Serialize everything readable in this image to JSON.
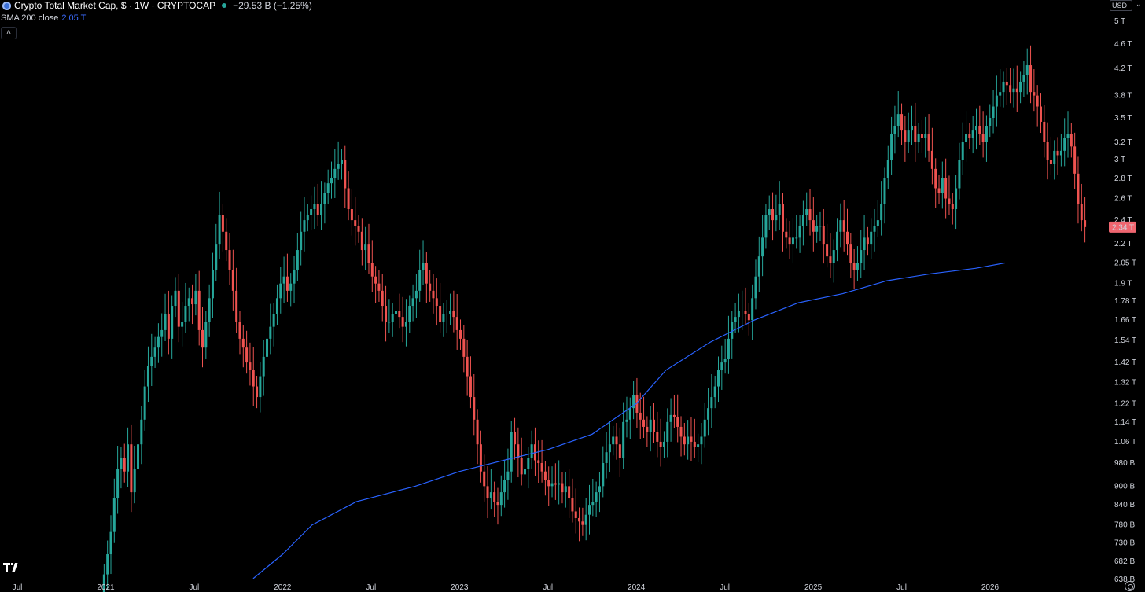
{
  "header": {
    "title": "Crypto Total Market Cap, $ · 1W · CRYPTOCAP",
    "change": "−29.53 B (−1.25%)",
    "indicator_label": "SMA 200 close",
    "indicator_value": "2.05 T",
    "collapse_icon": "chevron-up-icon",
    "currency": "USD"
  },
  "colors": {
    "up": "#26a69a",
    "down": "#ef5350",
    "sma": "#2962ff",
    "price_tag": "#f06670",
    "background": "#000000"
  },
  "chart_data": {
    "type": "line",
    "subtype": "candlestick_with_moving_average",
    "title": "Crypto Total Market Cap, $ · 1W · CRYPTOCAP",
    "xlabel": "",
    "ylabel": "",
    "y_scale": "log",
    "ylim": [
      "630B",
      "5.2T"
    ],
    "y_ticks": [
      "5 T",
      "4.6 T",
      "4.2 T",
      "3.8 T",
      "3.5 T",
      "3.2 T",
      "3 T",
      "2.8 T",
      "2.6 T",
      "2.4 T",
      "2.2 T",
      "2.05 T",
      "1.9 T",
      "1.78 T",
      "1.66 T",
      "1.54 T",
      "1.42 T",
      "1.32 T",
      "1.22 T",
      "1.14 T",
      "1.06 T",
      "980 B",
      "900 B",
      "840 B",
      "780 B",
      "730 B",
      "682 B",
      "638 B"
    ],
    "y_tick_values": [
      5000,
      4600,
      4200,
      3800,
      3500,
      3200,
      3000,
      2800,
      2600,
      2400,
      2200,
      2050,
      1900,
      1780,
      1660,
      1540,
      1420,
      1320,
      1220,
      1140,
      1060,
      980,
      900,
      840,
      780,
      730,
      682,
      638
    ],
    "x_ticks": [
      "Jul",
      "2021",
      "Jul",
      "2022",
      "Jul",
      "2023",
      "Jul",
      "2024",
      "Jul",
      "2025",
      "Jul",
      "2026"
    ],
    "x_tick_values": [
      "2020-07",
      "2021-01",
      "2021-07",
      "2022-01",
      "2022-07",
      "2023-01",
      "2023-07",
      "2024-01",
      "2024-07",
      "2025-01",
      "2025-07",
      "2026-01"
    ],
    "current_price_label": "2.34 T",
    "grid": false,
    "series": [
      {
        "name": "Crypto Total Market Cap",
        "type": "candlestick",
        "x_start": "2020-12-28",
        "x_step": "1 week",
        "closes": [
          650,
          700,
          760,
          860,
          960,
          1000,
          950,
          1050,
          880,
          960,
          1050,
          1150,
          1300,
          1400,
          1450,
          1500,
          1560,
          1600,
          1700,
          1550,
          1750,
          1850,
          1620,
          1650,
          1750,
          1800,
          1760,
          1850,
          1600,
          1500,
          1650,
          1800,
          2000,
          2200,
          2450,
          2300,
          2150,
          2000,
          1850,
          1650,
          1550,
          1500,
          1420,
          1380,
          1300,
          1250,
          1350,
          1450,
          1550,
          1620,
          1700,
          1800,
          1900,
          1950,
          1850,
          1900,
          2000,
          2150,
          2300,
          2400,
          2450,
          2500,
          2550,
          2450,
          2550,
          2650,
          2750,
          2800,
          2900,
          2950,
          3000,
          2700,
          2500,
          2400,
          2350,
          2300,
          2150,
          2200,
          2050,
          1950,
          1900,
          1850,
          1750,
          1650,
          1650,
          1700,
          1720,
          1680,
          1620,
          1650,
          1750,
          1800,
          1850,
          2000,
          2050,
          1900,
          1850,
          1800,
          1750,
          1650,
          1700,
          1700,
          1720,
          1680,
          1600,
          1550,
          1450,
          1350,
          1250,
          1150,
          1050,
          950,
          900,
          860,
          880,
          850,
          840,
          880,
          920,
          950,
          1100,
          1050,
          1000,
          940,
          960,
          1000,
          1050,
          990,
          980,
          950,
          920,
          900,
          910,
          905,
          910,
          880,
          900,
          860,
          820,
          800,
          790,
          780,
          810,
          840,
          850,
          880,
          900,
          980,
          1020,
          1050,
          1080,
          1050,
          1000,
          1140,
          1150,
          1200,
          1260,
          1180,
          1150,
          1120,
          1100,
          1150,
          1100,
          1060,
          1040,
          1060,
          1140,
          1170,
          1160,
          1120,
          1080,
          1050,
          1080,
          1060,
          1040,
          1050,
          1080,
          1150,
          1200,
          1250,
          1300,
          1380,
          1420,
          1440,
          1550,
          1650,
          1680,
          1720,
          1720,
          1700,
          1660,
          1800,
          1950,
          2100,
          2250,
          2450,
          2500,
          2400,
          2450,
          2550,
          2300,
          2250,
          2200,
          2250,
          2250,
          2350,
          2450,
          2500,
          2400,
          2300,
          2350,
          2350,
          2200,
          2100,
          2050,
          2150,
          2300,
          2400,
          2300,
          2200,
          2050,
          2000,
          2050,
          2150,
          2250,
          2200,
          2300,
          2350,
          2400,
          2550,
          2800,
          3000,
          3300,
          3400,
          3550,
          3350,
          3200,
          3350,
          3400,
          3200,
          3300,
          3250,
          3300,
          3100,
          2900,
          2700,
          2650,
          2800,
          2600,
          2550,
          2500,
          2700,
          3000,
          3200,
          3300,
          3250,
          3350,
          3400,
          3300,
          3200,
          3400,
          3500,
          3650,
          3800,
          3850,
          4000,
          3950,
          3850,
          3900,
          3850,
          4000,
          4100,
          4250,
          3850,
          3800,
          3650,
          3450,
          3200,
          3000,
          2950,
          3100,
          3050,
          3100,
          3250,
          3300,
          3150,
          2850,
          2550,
          2400,
          2340
        ],
        "note": "weekly OHLC estimated from the rendered candles"
      },
      {
        "name": "SMA 200 close",
        "type": "line",
        "x": [
          "2021-11",
          "2022-01",
          "2022-03",
          "2022-06",
          "2022-10",
          "2023-01",
          "2023-04",
          "2023-07",
          "2023-10",
          "2024-01",
          "2024-03",
          "2024-06",
          "2024-09",
          "2024-12",
          "2025-03",
          "2025-06",
          "2025-09",
          "2025-12",
          "2026-02"
        ],
        "values": [
          640,
          700,
          780,
          850,
          900,
          950,
          990,
          1030,
          1090,
          1220,
          1380,
          1530,
          1660,
          1770,
          1830,
          1920,
          1970,
          2010,
          2050
        ]
      }
    ]
  }
}
